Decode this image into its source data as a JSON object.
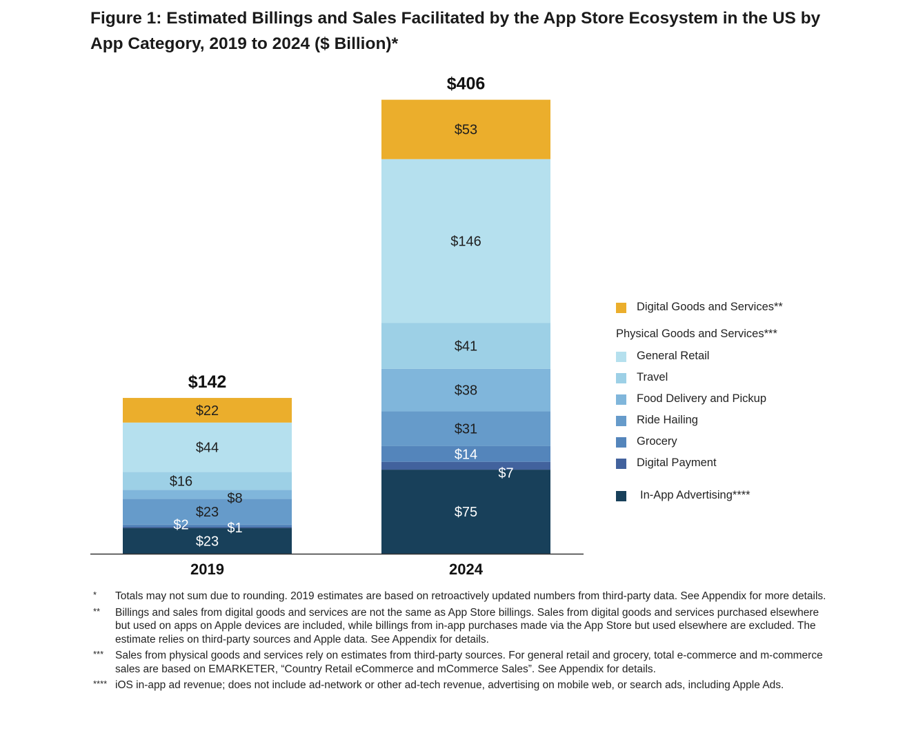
{
  "title": "Figure 1: Estimated Billings and Sales Facilitated by the App Store Ecosystem in the US by App Category, 2019 to 2024 ($ Billion)*",
  "colors": {
    "digital_goods": "#ebae2c",
    "general_retail": "#b5e0ee",
    "travel": "#9dd0e6",
    "food_delivery": "#80b6db",
    "ride_hailing": "#669bca",
    "grocery": "#5485bb",
    "digital_payment": "#42629d",
    "in_app_advertising": "#18405a"
  },
  "chart_data": {
    "type": "bar",
    "stacked": true,
    "title": "Figure 1: Estimated Billings and Sales Facilitated by the App Store Ecosystem in the US by App Category, 2019 to 2024 ($ Billion)*",
    "categories": [
      "2019",
      "2024"
    ],
    "totals": [
      142,
      406
    ],
    "total_labels": [
      "$142",
      "$406"
    ],
    "ylim": [
      0,
      406
    ],
    "series": [
      {
        "name": "In-App Advertising****",
        "key": "in_app_advertising",
        "values": [
          23,
          75
        ],
        "labels": [
          "$23",
          "$75"
        ]
      },
      {
        "name": "Digital Payment",
        "key": "digital_payment",
        "values": [
          1,
          7
        ],
        "labels": [
          "$1",
          "$7"
        ]
      },
      {
        "name": "Grocery",
        "key": "grocery",
        "values": [
          2,
          14
        ],
        "labels": [
          "$2",
          "$14"
        ]
      },
      {
        "name": "Ride Hailing",
        "key": "ride_hailing",
        "values": [
          23,
          31
        ],
        "labels": [
          "$23",
          "$31"
        ]
      },
      {
        "name": "Food Delivery and Pickup",
        "key": "food_delivery",
        "values": [
          8,
          38
        ],
        "labels": [
          "$8",
          "$38"
        ]
      },
      {
        "name": "Travel",
        "key": "travel",
        "values": [
          16,
          41
        ],
        "labels": [
          "$16",
          "$41"
        ]
      },
      {
        "name": "General Retail",
        "key": "general_retail",
        "values": [
          44,
          146
        ],
        "labels": [
          "$44",
          "$146"
        ]
      },
      {
        "name": "Digital Goods and Services**",
        "key": "digital_goods",
        "values": [
          22,
          53
        ],
        "labels": [
          "$22",
          "$53"
        ]
      }
    ]
  },
  "legend": {
    "digital_goods": "Digital Goods and Services**",
    "physical_header": "Physical Goods and Services***",
    "general_retail": "General Retail",
    "travel": "Travel",
    "food_delivery": "Food Delivery and Pickup",
    "ride_hailing": "Ride Hailing",
    "grocery": "Grocery",
    "digital_payment": "Digital Payment",
    "in_app_advertising": "In-App Advertising****"
  },
  "footnotes": [
    {
      "marker": "*",
      "text": "Totals may not sum due to rounding. 2019 estimates are based on retroactively updated numbers from third-party data. See Appendix for more details."
    },
    {
      "marker": "**",
      "text": "Billings and sales from digital goods and services are not the same as App Store billings. Sales from digital goods and services purchased elsewhere but used on apps on Apple devices are included, while billings from in-app purchases made via the App Store but used elsewhere are excluded. The estimate relies on third-party sources and Apple data. See Appendix for details."
    },
    {
      "marker": "***",
      "text": "Sales from physical goods and services rely on estimates from third-party sources. For general retail and grocery, total e-commerce and m-commerce sales are based on EMARKETER, “Country Retail eCommerce and mCommerce Sales”. See Appendix for details."
    },
    {
      "marker": "****",
      "text": "iOS in-app ad revenue; does not include ad-network or other ad-tech revenue, advertising on mobile web, or search ads, including Apple Ads."
    }
  ]
}
